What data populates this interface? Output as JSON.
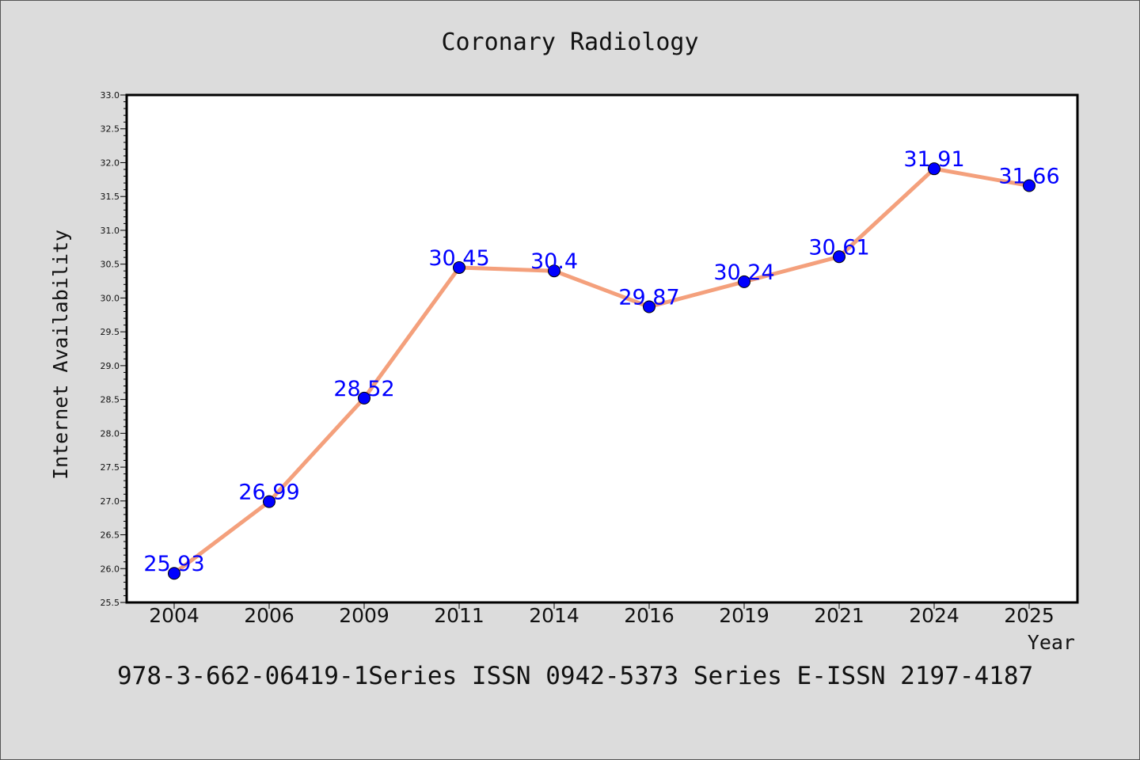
{
  "chart_data": {
    "type": "line",
    "title": "Coronary Radiology",
    "xlabel": "Year",
    "ylabel": "Internet Availability",
    "categories": [
      "2004",
      "2006",
      "2009",
      "2011",
      "2014",
      "2016",
      "2019",
      "2021",
      "2024",
      "2025"
    ],
    "values": [
      25.93,
      26.99,
      28.52,
      30.45,
      30.4,
      29.87,
      30.24,
      30.61,
      31.91,
      31.66
    ],
    "data_labels": [
      "25.93",
      "26.99",
      "28.52",
      "30.45",
      "30.4",
      "29.87",
      "30.24",
      "30.61",
      "31.91",
      "31.66"
    ],
    "ylim": [
      25.5,
      33.0
    ],
    "yticks": [
      "25.5",
      "26.0",
      "26.5",
      "27.0",
      "27.5",
      "28.0",
      "28.5",
      "29.0",
      "29.5",
      "30.0",
      "30.5",
      "31.0",
      "31.5",
      "32.0",
      "32.5",
      "33.0"
    ],
    "grid": false,
    "legend": "none",
    "colors": {
      "line": "#f4a07c",
      "marker": "#0000ff",
      "label": "#0000ff",
      "background": "#dcdcdc",
      "plot_bg": "#ffffff"
    }
  },
  "footer": {
    "text": "978-3-662-06419-1Series ISSN 0942-5373 Series E-ISSN 2197-4187"
  }
}
